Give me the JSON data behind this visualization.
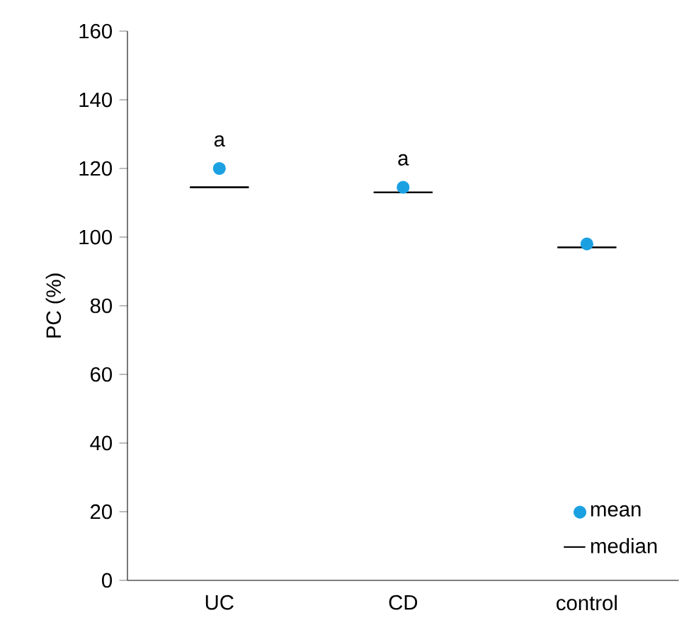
{
  "chart_data": {
    "type": "scatter",
    "ylabel": "PC (%)",
    "categories": [
      "UC",
      "CD",
      "control"
    ],
    "series": [
      {
        "name": "mean",
        "color": "#1ba1e2",
        "marker": "circle",
        "values": [
          120,
          114.5,
          98
        ]
      },
      {
        "name": "median",
        "color": "#000000",
        "type": "box",
        "boxes": [
          {
            "low": 114.5,
            "q1": 114.5,
            "median": 114.5,
            "q3": 114.5,
            "high": 114.5
          },
          {
            "low": 113,
            "q1": 113,
            "median": 113,
            "q3": 113,
            "high": 113
          },
          {
            "low": 97,
            "q1": 97,
            "median": 97,
            "q3": 97,
            "high": 97
          }
        ]
      }
    ],
    "ylim": [
      0,
      160
    ],
    "yticks": [
      0,
      20,
      40,
      60,
      80,
      100,
      120,
      140,
      160
    ],
    "annotations": [
      "a",
      "a"
    ],
    "legend": "bottom right",
    "grid": false
  }
}
